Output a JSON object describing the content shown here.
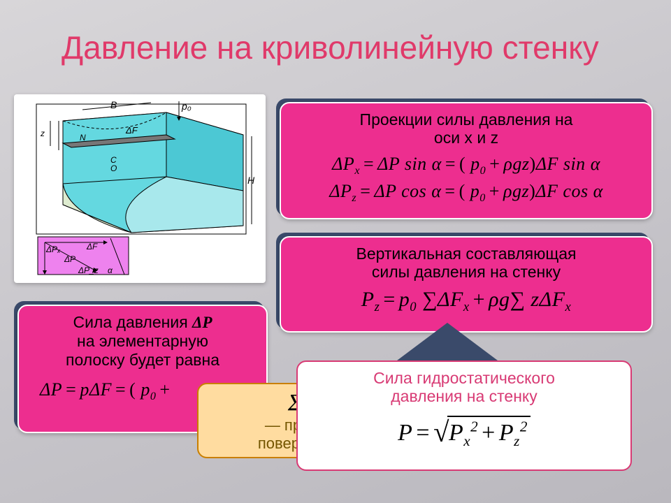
{
  "title": "Давление на криволинейную стенку",
  "colors": {
    "accent_pink": "#ed2e8f",
    "title_pink": "#e03a6a",
    "shadow_blue": "#3a4a6a",
    "beige_fill": "#ffdca0",
    "beige_border": "#c97f00",
    "white_border": "#d83a74",
    "bg_grad_start": "#d8d6d9",
    "bg_grad_end": "#bab8be"
  },
  "diagram": {
    "frame_bg": "#ffffff",
    "water_fill": "#64d8e0",
    "wall_fill": "#deecd0",
    "inset_fill": "#ee82ee",
    "stroke": "#000000",
    "labels": {
      "B": "B",
      "p0": "p₀",
      "dF": "ΔF",
      "H": "H",
      "N": "N",
      "z": "z",
      "C": "C",
      "O": "O",
      "dPx": "ΔPₓ",
      "dPz": "ΔP_z",
      "dP": "ΔP",
      "alpha": "α"
    }
  },
  "panels": {
    "proj": {
      "heading_l1": "Проекции силы давления на",
      "heading_l2": "оси x и z",
      "eq1_html": "Δ<i>P<span class='sub'>x</span></i><span class='op'>=</span>Δ<i>P</i> <i>sin</i> α<span class='op'>=</span><span class='rm'>(</span> <i>p<span class='sub'>0</span></i><span class='op'>+</span>ρ<i>gz</i><span class='rm'>)</span>Δ<i>F</i> <i>sin</i> α",
      "eq2_html": "Δ<i>P<span class='sub'>z</span></i><span class='op'>=</span>Δ<i>P</i> <i>cos</i> α<span class='op'>=</span><span class='rm'>(</span> <i>p<span class='sub'>0</span></i><span class='op'>+</span>ρ<i>gz</i><span class='rm'>)</span>Δ<i>F</i> <i>cos</i> α"
    },
    "vert": {
      "heading_l1": "Вертикальная составляющая",
      "heading_l2": "силы давления на стенку",
      "eq_html": "<i>P<span class='sub'>z</span></i><span class='op'>=</span><i>p<span class='sub'>0</span></i> ∑Δ<i>F<span class='sub'>x</span></i><span class='op'>+</span>ρ<i>g</i>∑ <i>z</i>Δ<i>F<span class='sub'>x</span></i>"
    },
    "dp": {
      "heading_l1": "Сила давления ΔP",
      "heading_l2": "на элементарную",
      "heading_l3": "полоску будет равна",
      "eq_html": "Δ<i>P</i><span class='op'>=</span><i>p</i>Δ<i>F</i><span class='op'>=</span><span class='rm'>(</span> <i>p<span class='sub'>0</span></i><span class='op'>+</span>"
    },
    "beige": {
      "line1": "— проек",
      "line2": "поверхнос",
      "sigma": "Σ"
    },
    "hydro": {
      "heading_l1": "Сила гидростатического",
      "heading_l2": "давления на стенку",
      "eq_html": "<i>P</i><span class='op'>=</span><span class='radical'>√</span><span class='sqrt-box'><i>P<span class='sub'>x</span><span class='sup'>2</span></i><span class='op'>+</span><i>P<span class='sub'>z</span><span class='sup'>2</span></i></span>"
    }
  }
}
